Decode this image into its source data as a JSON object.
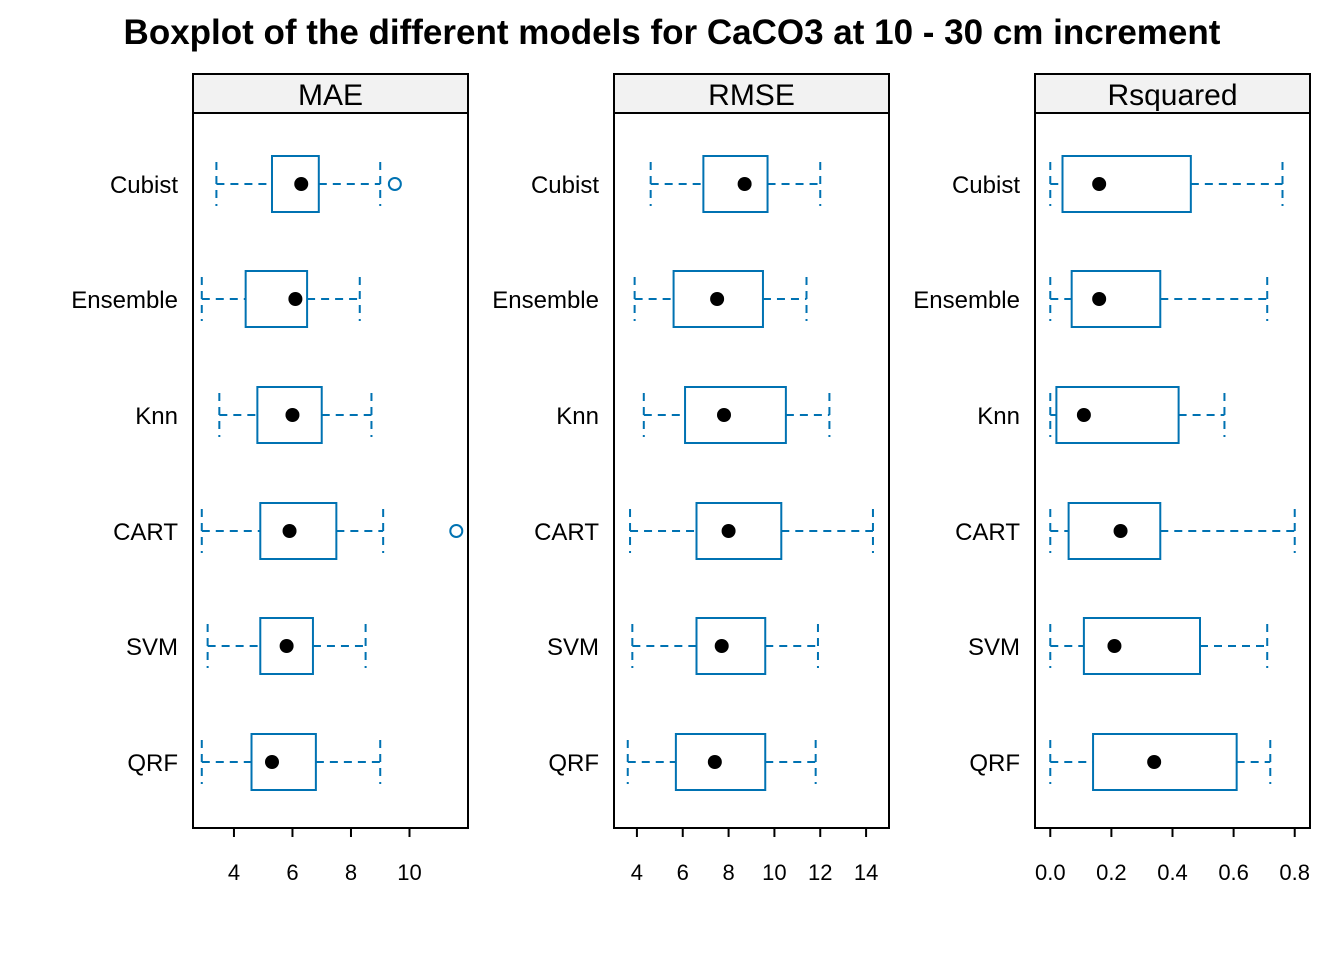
{
  "chart_data": {
    "type": "boxplot",
    "title": "Boxplot of the different models for CaCO3 at 10 - 30 cm increment",
    "orientation": "horizontal",
    "categories": [
      "Cubist",
      "Ensemble",
      "Knn",
      "CART",
      "SVM",
      "QRF"
    ],
    "colors": {
      "box": "#0072B2",
      "median_dot": "#000000",
      "strip_bg": "#F2F2F2",
      "frame": "#000000"
    },
    "panels": [
      {
        "name": "MAE",
        "xlim": [
          2.6,
          12.0
        ],
        "ticks": [
          4,
          6,
          8,
          10
        ],
        "stats": [
          {
            "category": "Cubist",
            "whisker_low": 3.4,
            "q1": 5.3,
            "median": 6.3,
            "q3": 6.9,
            "whisker_high": 9.0,
            "outliers": [
              9.5
            ]
          },
          {
            "category": "Ensemble",
            "whisker_low": 2.9,
            "q1": 4.4,
            "median": 6.1,
            "q3": 6.5,
            "whisker_high": 8.3,
            "outliers": []
          },
          {
            "category": "Knn",
            "whisker_low": 3.5,
            "q1": 4.8,
            "median": 6.0,
            "q3": 7.0,
            "whisker_high": 8.7,
            "outliers": []
          },
          {
            "category": "CART",
            "whisker_low": 2.9,
            "q1": 4.9,
            "median": 5.9,
            "q3": 7.5,
            "whisker_high": 9.1,
            "outliers": [
              11.6
            ]
          },
          {
            "category": "SVM",
            "whisker_low": 3.1,
            "q1": 4.9,
            "median": 5.8,
            "q3": 6.7,
            "whisker_high": 8.5,
            "outliers": []
          },
          {
            "category": "QRF",
            "whisker_low": 2.9,
            "q1": 4.6,
            "median": 5.3,
            "q3": 6.8,
            "whisker_high": 9.0,
            "outliers": []
          }
        ]
      },
      {
        "name": "RMSE",
        "xlim": [
          3.0,
          15.0
        ],
        "ticks": [
          4,
          6,
          8,
          10,
          12,
          14
        ],
        "stats": [
          {
            "category": "Cubist",
            "whisker_low": 4.6,
            "q1": 6.9,
            "median": 8.7,
            "q3": 9.7,
            "whisker_high": 12.0,
            "outliers": []
          },
          {
            "category": "Ensemble",
            "whisker_low": 3.9,
            "q1": 5.6,
            "median": 7.5,
            "q3": 9.5,
            "whisker_high": 11.4,
            "outliers": []
          },
          {
            "category": "Knn",
            "whisker_low": 4.3,
            "q1": 6.1,
            "median": 7.8,
            "q3": 10.5,
            "whisker_high": 12.4,
            "outliers": []
          },
          {
            "category": "CART",
            "whisker_low": 3.7,
            "q1": 6.6,
            "median": 8.0,
            "q3": 10.3,
            "whisker_high": 14.3,
            "outliers": []
          },
          {
            "category": "SVM",
            "whisker_low": 3.8,
            "q1": 6.6,
            "median": 7.7,
            "q3": 9.6,
            "whisker_high": 11.9,
            "outliers": []
          },
          {
            "category": "QRF",
            "whisker_low": 3.6,
            "q1": 5.7,
            "median": 7.4,
            "q3": 9.6,
            "whisker_high": 11.8,
            "outliers": []
          }
        ]
      },
      {
        "name": "Rsquared",
        "xlim": [
          -0.05,
          0.85
        ],
        "ticks": [
          0.0,
          0.2,
          0.4,
          0.6,
          0.8
        ],
        "tick_labels": [
          "0.0",
          "0.2",
          "0.4",
          "0.6",
          "0.8"
        ],
        "stats": [
          {
            "category": "Cubist",
            "whisker_low": 0.0,
            "q1": 0.04,
            "median": 0.16,
            "q3": 0.46,
            "whisker_high": 0.76,
            "outliers": []
          },
          {
            "category": "Ensemble",
            "whisker_low": 0.0,
            "q1": 0.07,
            "median": 0.16,
            "q3": 0.36,
            "whisker_high": 0.71,
            "outliers": []
          },
          {
            "category": "Knn",
            "whisker_low": 0.0,
            "q1": 0.02,
            "median": 0.11,
            "q3": 0.42,
            "whisker_high": 0.57,
            "outliers": []
          },
          {
            "category": "CART",
            "whisker_low": 0.0,
            "q1": 0.06,
            "median": 0.23,
            "q3": 0.36,
            "whisker_high": 0.8,
            "outliers": []
          },
          {
            "category": "SVM",
            "whisker_low": 0.0,
            "q1": 0.11,
            "median": 0.21,
            "q3": 0.49,
            "whisker_high": 0.71,
            "outliers": []
          },
          {
            "category": "QRF",
            "whisker_low": 0.0,
            "q1": 0.14,
            "median": 0.34,
            "q3": 0.61,
            "whisker_high": 0.72,
            "outliers": []
          }
        ]
      }
    ]
  }
}
